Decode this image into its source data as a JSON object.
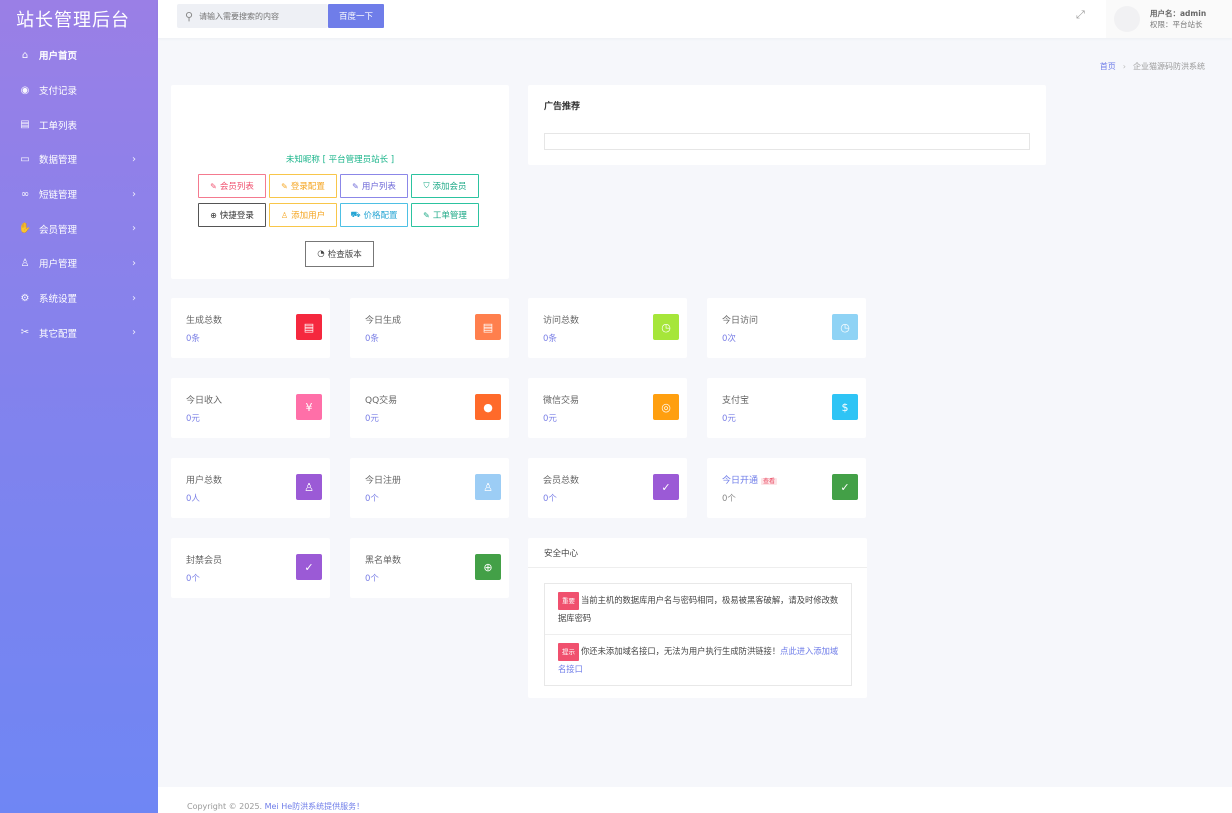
{
  "app": {
    "title": "站长管理后台"
  },
  "sidebar": {
    "items": [
      {
        "label": "用户首页",
        "icon": "home-icon",
        "glyph": "⌂",
        "chevron": false
      },
      {
        "label": "支付记录",
        "icon": "payment-icon",
        "glyph": "◉",
        "chevron": false
      },
      {
        "label": "工单列表",
        "icon": "ticket-icon",
        "glyph": "▤",
        "chevron": false
      },
      {
        "label": "数据管理",
        "icon": "database-icon",
        "glyph": "▭",
        "chevron": true
      },
      {
        "label": "短链管理",
        "icon": "link-icon",
        "glyph": "∞",
        "chevron": true
      },
      {
        "label": "会员管理",
        "icon": "member-icon",
        "glyph": "✋",
        "chevron": true
      },
      {
        "label": "用户管理",
        "icon": "user-icon",
        "glyph": "♙",
        "chevron": true
      },
      {
        "label": "系统设置",
        "icon": "settings-icon",
        "glyph": "⚙",
        "chevron": true
      },
      {
        "label": "其它配置",
        "icon": "config-icon",
        "glyph": "✂",
        "chevron": true
      }
    ],
    "chevron_glyph": "›"
  },
  "topbar": {
    "search_placeholder": "请输入需要搜索的内容",
    "search_button": "百度一下",
    "user_name": "用户名：admin",
    "user_role": "权限：平台站长"
  },
  "breadcrumb": {
    "home": "首页",
    "separator": "›",
    "current": "企业猫源码防洪系统"
  },
  "profile": {
    "nickname": "未知昵称 [ 平台管理员站长 ]",
    "buttons_row1": [
      {
        "label": "会员列表",
        "glyph": "✎"
      },
      {
        "label": "登录配置",
        "glyph": "✎"
      },
      {
        "label": "用户列表",
        "glyph": "✎"
      },
      {
        "label": "添加会员",
        "glyph": "⛉"
      }
    ],
    "buttons_row2": [
      {
        "label": "快捷登录",
        "glyph": "⊕"
      },
      {
        "label": "添加用户",
        "glyph": "♙"
      },
      {
        "label": "价格配置",
        "glyph": "⛟"
      },
      {
        "label": "工单管理",
        "glyph": "✎"
      }
    ],
    "check_version": "检查版本",
    "check_glyph": "◔"
  },
  "ad": {
    "title": "广告推荐"
  },
  "stats": [
    {
      "label": "生成总数",
      "value": "0条",
      "color": "#f5283e",
      "glyph": "▤"
    },
    {
      "label": "今日生成",
      "value": "0条",
      "color": "#ff7f4d",
      "glyph": "▤"
    },
    {
      "label": "访问总数",
      "value": "0条",
      "color": "#a6e63a",
      "glyph": "◷"
    },
    {
      "label": "今日访问",
      "value": "0次",
      "color": "#8fd3f5",
      "glyph": "◷"
    },
    {
      "label": "今日收入",
      "value": "0元",
      "color": "#ff6fa8",
      "glyph": "¥"
    },
    {
      "label": "QQ交易",
      "value": "0元",
      "color": "#ff6a2a",
      "glyph": "●"
    },
    {
      "label": "微信交易",
      "value": "0元",
      "color": "#ff9f0f",
      "glyph": "◎"
    },
    {
      "label": "支付宝",
      "value": "0元",
      "color": "#2ec4f5",
      "glyph": "$"
    },
    {
      "label": "用户总数",
      "value": "0人",
      "color": "#9b5ad6",
      "glyph": "♙"
    },
    {
      "label": "今日注册",
      "value": "0个",
      "color": "#9ccdf5",
      "glyph": "♙"
    },
    {
      "label": "会员总数",
      "value": "0个",
      "color": "#9b5ad6",
      "glyph": "✓"
    },
    {
      "label": "今日开通",
      "value": "0个",
      "color": "#43a047",
      "glyph": "✓",
      "tag": "查看"
    },
    {
      "label": "封禁会员",
      "value": "0个",
      "color": "#9b5ad6",
      "glyph": "✓"
    },
    {
      "label": "黑名单数",
      "value": "0个",
      "color": "#43a047",
      "glyph": "⊕"
    }
  ],
  "security": {
    "title": "安全中心",
    "items": [
      {
        "badge": "重要",
        "text": "当前主机的数据库用户名与密码相同，极易被黑客破解，请及时修改数据库密码",
        "link": ""
      },
      {
        "badge": "提示",
        "text": "你还未添加域名接口，无法为用户执行生成防洪链接！",
        "link": "点此进入添加域名接口"
      }
    ]
  },
  "footer": {
    "prefix": "Copyright © 2025.",
    "brand": "Mei He防洪系统提供服务！"
  },
  "colors": {
    "accent": "#6f7de9",
    "green": "#19b48a",
    "danger": "#f0506e"
  }
}
